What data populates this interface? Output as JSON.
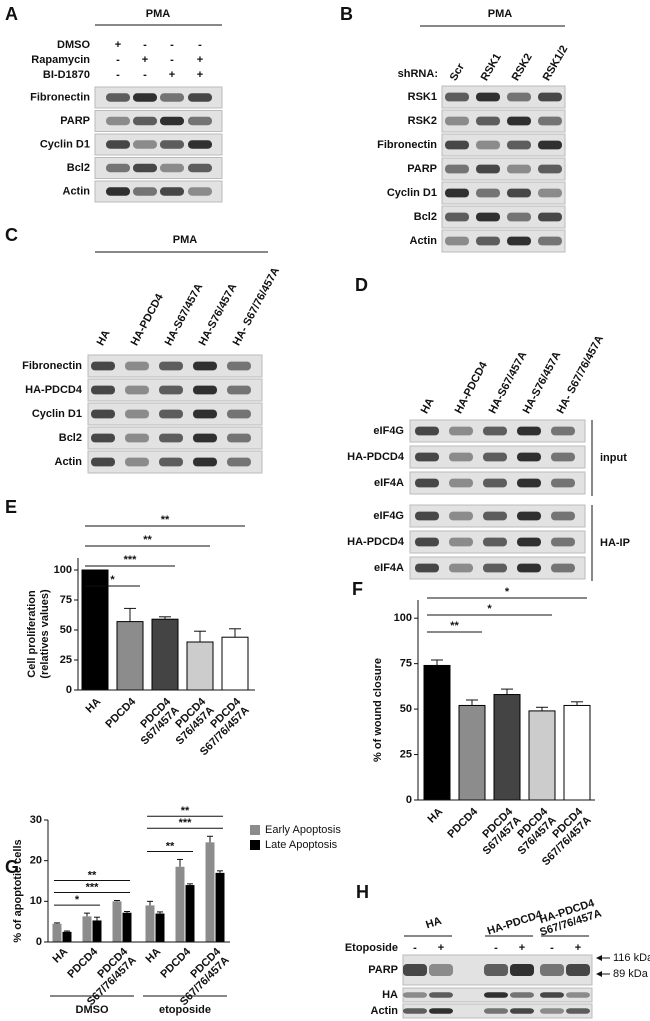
{
  "panels": {
    "A": {
      "letter": "A",
      "header": "PMA",
      "treatments": [
        {
          "name": "DMSO",
          "signs": [
            "+",
            "-",
            "-",
            "-"
          ]
        },
        {
          "name": "Rapamycin",
          "signs": [
            "-",
            "+",
            "-",
            "+"
          ]
        },
        {
          "name": "BI-D1870",
          "signs": [
            "-",
            "-",
            "+",
            "+"
          ]
        }
      ],
      "rows": [
        "Fibronectin",
        "PARP",
        "Cyclin D1",
        "Bcl2",
        "Actin"
      ]
    },
    "B": {
      "letter": "B",
      "header": "PMA",
      "lane_title": "shRNA:",
      "lanes": [
        "Scr",
        "RSK1",
        "RSK2",
        "RSK1/2"
      ],
      "rows": [
        "RSK1",
        "RSK2",
        "Fibronectin",
        "PARP",
        "Cyclin D1",
        "Bcl2",
        "Actin"
      ]
    },
    "C": {
      "letter": "C",
      "header": "PMA",
      "lanes": [
        "HA",
        "HA-PDCD4",
        "HA-S67/457A",
        "HA-S76/457A",
        "HA- S67/76/457A"
      ],
      "rows": [
        "Fibronectin",
        "HA-PDCD4",
        "Cyclin D1",
        "Bcl2",
        "Actin"
      ]
    },
    "D": {
      "letter": "D",
      "lanes": [
        "HA",
        "HA-PDCD4",
        "HA-S67/457A",
        "HA-S76/457A",
        "HA- S67/76/457A"
      ],
      "groups": [
        {
          "name": "input",
          "rows": [
            "eIF4G",
            "HA-PDCD4",
            "eIF4A"
          ]
        },
        {
          "name": "HA-IP",
          "rows": [
            "eIF4G",
            "HA-PDCD4",
            "eIF4A"
          ]
        }
      ]
    },
    "H": {
      "letter": "H",
      "groups": [
        [
          "HA"
        ],
        [
          "HA-PDCD4"
        ],
        [
          "HA-PDCD4",
          "S67/76/457A"
        ]
      ],
      "treatment": "Etoposide",
      "signs": [
        "-",
        "+",
        "-",
        "+",
        "-",
        "+"
      ],
      "rows": [
        "PARP",
        "HA",
        "Actin"
      ],
      "markers": [
        "116 kDa",
        "89 kDa"
      ]
    }
  },
  "chart_data": [
    {
      "type": "bar",
      "letter": "E",
      "ylabel": [
        "Cell proliferation",
        "(relatives values)"
      ],
      "categories": [
        [
          "HA"
        ],
        [
          "PDCD4"
        ],
        [
          "PDCD4",
          "S67/457A"
        ],
        [
          "PDCD4",
          "S76/457A"
        ],
        [
          "PDCD4",
          "S67/76/457A"
        ]
      ],
      "values": [
        100,
        57,
        59,
        40,
        44
      ],
      "errors": [
        0,
        11,
        2,
        9,
        7
      ],
      "colors": [
        "#000000",
        "#8c8c8c",
        "#444444",
        "#cccccc",
        "#ffffff"
      ],
      "ylim": [
        0,
        110
      ],
      "yticks": [
        0,
        25,
        50,
        75,
        100
      ],
      "significance": [
        null,
        "*",
        "***",
        "**",
        "**"
      ]
    },
    {
      "type": "bar",
      "letter": "F",
      "ylabel": [
        "% of wound closure"
      ],
      "categories": [
        [
          "HA"
        ],
        [
          "PDCD4"
        ],
        [
          "PDCD4",
          "S67/457A"
        ],
        [
          "PDCD4",
          "S76/457A"
        ],
        [
          "PDCD4",
          "S67/76/457A"
        ]
      ],
      "values": [
        74,
        52,
        58,
        49,
        52
      ],
      "errors": [
        3,
        3,
        3,
        2,
        2
      ],
      "colors": [
        "#000000",
        "#8c8c8c",
        "#444444",
        "#cccccc",
        "#ffffff"
      ],
      "ylim": [
        0,
        110
      ],
      "yticks": [
        0,
        25,
        50,
        75,
        100
      ],
      "significance": [
        null,
        "**",
        null,
        "*",
        "*"
      ]
    },
    {
      "type": "grouped_bar",
      "letter": "G",
      "ylabel": [
        "% of apoptotic cells"
      ],
      "groups": [
        "DMSO",
        "etoposide"
      ],
      "categories": [
        [
          "HA"
        ],
        [
          "PDCD4"
        ],
        [
          "PDCD4",
          "S67/76/457A"
        ]
      ],
      "series": [
        {
          "name": "Early Apoptosis",
          "color": "#8c8c8c",
          "values": [
            [
              4.5,
              6.3,
              10
            ],
            [
              9,
              18.5,
              24.5
            ]
          ],
          "errors": [
            [
              0.2,
              0.8,
              0.2
            ],
            [
              1,
              1.8,
              1.5
            ]
          ]
        },
        {
          "name": "Late Apoptosis",
          "color": "#000000",
          "values": [
            [
              2.5,
              5.3,
              7.2
            ],
            [
              7,
              14,
              17
            ]
          ],
          "errors": [
            [
              0.2,
              0.8,
              0.3
            ],
            [
              0.4,
              0.3,
              0.5
            ]
          ]
        }
      ],
      "ylim": [
        0,
        30
      ],
      "yticks": [
        0,
        10,
        20,
        30
      ],
      "significance": [
        [
          "**",
          "***",
          "*"
        ],
        [
          "**",
          "***",
          "**"
        ]
      ]
    }
  ]
}
